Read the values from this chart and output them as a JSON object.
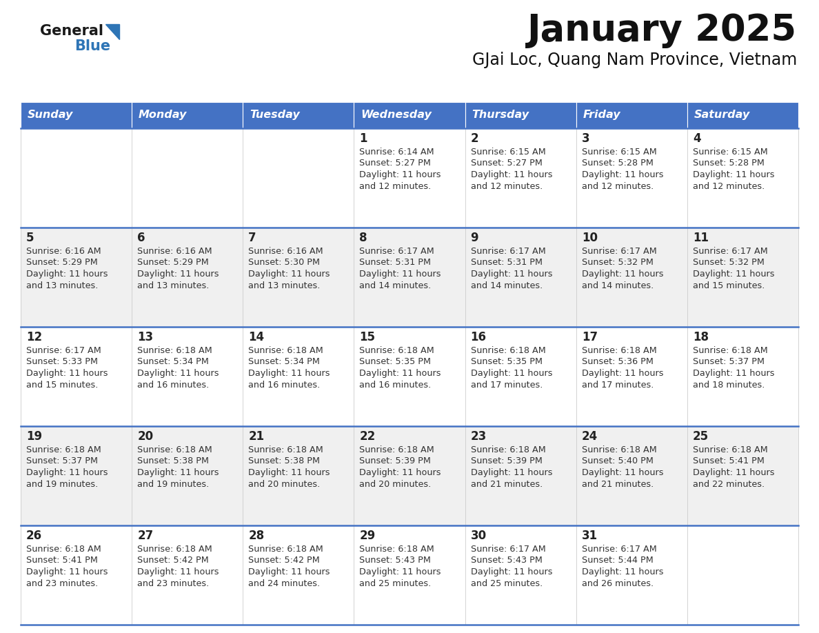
{
  "title": "January 2025",
  "subtitle": "GJai Loc, Quang Nam Province, Vietnam",
  "days_of_week": [
    "Sunday",
    "Monday",
    "Tuesday",
    "Wednesday",
    "Thursday",
    "Friday",
    "Saturday"
  ],
  "header_bg": "#4472C4",
  "header_text": "#FFFFFF",
  "odd_row_bg": "#FFFFFF",
  "even_row_bg": "#F0F0F0",
  "cell_border": "#4472C4",
  "day_num_color": "#222222",
  "text_color": "#333333",
  "logo_general_color": "#1a1a1a",
  "logo_blue_color": "#2E75B6",
  "calendar_data": [
    [
      null,
      null,
      null,
      {
        "day": 1,
        "sunrise": "6:14 AM",
        "sunset": "5:27 PM",
        "daylight_line1": "Daylight: 11 hours",
        "daylight_line2": "and 12 minutes."
      },
      {
        "day": 2,
        "sunrise": "6:15 AM",
        "sunset": "5:27 PM",
        "daylight_line1": "Daylight: 11 hours",
        "daylight_line2": "and 12 minutes."
      },
      {
        "day": 3,
        "sunrise": "6:15 AM",
        "sunset": "5:28 PM",
        "daylight_line1": "Daylight: 11 hours",
        "daylight_line2": "and 12 minutes."
      },
      {
        "day": 4,
        "sunrise": "6:15 AM",
        "sunset": "5:28 PM",
        "daylight_line1": "Daylight: 11 hours",
        "daylight_line2": "and 12 minutes."
      }
    ],
    [
      {
        "day": 5,
        "sunrise": "6:16 AM",
        "sunset": "5:29 PM",
        "daylight_line1": "Daylight: 11 hours",
        "daylight_line2": "and 13 minutes."
      },
      {
        "day": 6,
        "sunrise": "6:16 AM",
        "sunset": "5:29 PM",
        "daylight_line1": "Daylight: 11 hours",
        "daylight_line2": "and 13 minutes."
      },
      {
        "day": 7,
        "sunrise": "6:16 AM",
        "sunset": "5:30 PM",
        "daylight_line1": "Daylight: 11 hours",
        "daylight_line2": "and 13 minutes."
      },
      {
        "day": 8,
        "sunrise": "6:17 AM",
        "sunset": "5:31 PM",
        "daylight_line1": "Daylight: 11 hours",
        "daylight_line2": "and 14 minutes."
      },
      {
        "day": 9,
        "sunrise": "6:17 AM",
        "sunset": "5:31 PM",
        "daylight_line1": "Daylight: 11 hours",
        "daylight_line2": "and 14 minutes."
      },
      {
        "day": 10,
        "sunrise": "6:17 AM",
        "sunset": "5:32 PM",
        "daylight_line1": "Daylight: 11 hours",
        "daylight_line2": "and 14 minutes."
      },
      {
        "day": 11,
        "sunrise": "6:17 AM",
        "sunset": "5:32 PM",
        "daylight_line1": "Daylight: 11 hours",
        "daylight_line2": "and 15 minutes."
      }
    ],
    [
      {
        "day": 12,
        "sunrise": "6:17 AM",
        "sunset": "5:33 PM",
        "daylight_line1": "Daylight: 11 hours",
        "daylight_line2": "and 15 minutes."
      },
      {
        "day": 13,
        "sunrise": "6:18 AM",
        "sunset": "5:34 PM",
        "daylight_line1": "Daylight: 11 hours",
        "daylight_line2": "and 16 minutes."
      },
      {
        "day": 14,
        "sunrise": "6:18 AM",
        "sunset": "5:34 PM",
        "daylight_line1": "Daylight: 11 hours",
        "daylight_line2": "and 16 minutes."
      },
      {
        "day": 15,
        "sunrise": "6:18 AM",
        "sunset": "5:35 PM",
        "daylight_line1": "Daylight: 11 hours",
        "daylight_line2": "and 16 minutes."
      },
      {
        "day": 16,
        "sunrise": "6:18 AM",
        "sunset": "5:35 PM",
        "daylight_line1": "Daylight: 11 hours",
        "daylight_line2": "and 17 minutes."
      },
      {
        "day": 17,
        "sunrise": "6:18 AM",
        "sunset": "5:36 PM",
        "daylight_line1": "Daylight: 11 hours",
        "daylight_line2": "and 17 minutes."
      },
      {
        "day": 18,
        "sunrise": "6:18 AM",
        "sunset": "5:37 PM",
        "daylight_line1": "Daylight: 11 hours",
        "daylight_line2": "and 18 minutes."
      }
    ],
    [
      {
        "day": 19,
        "sunrise": "6:18 AM",
        "sunset": "5:37 PM",
        "daylight_line1": "Daylight: 11 hours",
        "daylight_line2": "and 19 minutes."
      },
      {
        "day": 20,
        "sunrise": "6:18 AM",
        "sunset": "5:38 PM",
        "daylight_line1": "Daylight: 11 hours",
        "daylight_line2": "and 19 minutes."
      },
      {
        "day": 21,
        "sunrise": "6:18 AM",
        "sunset": "5:38 PM",
        "daylight_line1": "Daylight: 11 hours",
        "daylight_line2": "and 20 minutes."
      },
      {
        "day": 22,
        "sunrise": "6:18 AM",
        "sunset": "5:39 PM",
        "daylight_line1": "Daylight: 11 hours",
        "daylight_line2": "and 20 minutes."
      },
      {
        "day": 23,
        "sunrise": "6:18 AM",
        "sunset": "5:39 PM",
        "daylight_line1": "Daylight: 11 hours",
        "daylight_line2": "and 21 minutes."
      },
      {
        "day": 24,
        "sunrise": "6:18 AM",
        "sunset": "5:40 PM",
        "daylight_line1": "Daylight: 11 hours",
        "daylight_line2": "and 21 minutes."
      },
      {
        "day": 25,
        "sunrise": "6:18 AM",
        "sunset": "5:41 PM",
        "daylight_line1": "Daylight: 11 hours",
        "daylight_line2": "and 22 minutes."
      }
    ],
    [
      {
        "day": 26,
        "sunrise": "6:18 AM",
        "sunset": "5:41 PM",
        "daylight_line1": "Daylight: 11 hours",
        "daylight_line2": "and 23 minutes."
      },
      {
        "day": 27,
        "sunrise": "6:18 AM",
        "sunset": "5:42 PM",
        "daylight_line1": "Daylight: 11 hours",
        "daylight_line2": "and 23 minutes."
      },
      {
        "day": 28,
        "sunrise": "6:18 AM",
        "sunset": "5:42 PM",
        "daylight_line1": "Daylight: 11 hours",
        "daylight_line2": "and 24 minutes."
      },
      {
        "day": 29,
        "sunrise": "6:18 AM",
        "sunset": "5:43 PM",
        "daylight_line1": "Daylight: 11 hours",
        "daylight_line2": "and 25 minutes."
      },
      {
        "day": 30,
        "sunrise": "6:17 AM",
        "sunset": "5:43 PM",
        "daylight_line1": "Daylight: 11 hours",
        "daylight_line2": "and 25 minutes."
      },
      {
        "day": 31,
        "sunrise": "6:17 AM",
        "sunset": "5:44 PM",
        "daylight_line1": "Daylight: 11 hours",
        "daylight_line2": "and 26 minutes."
      },
      null
    ]
  ]
}
